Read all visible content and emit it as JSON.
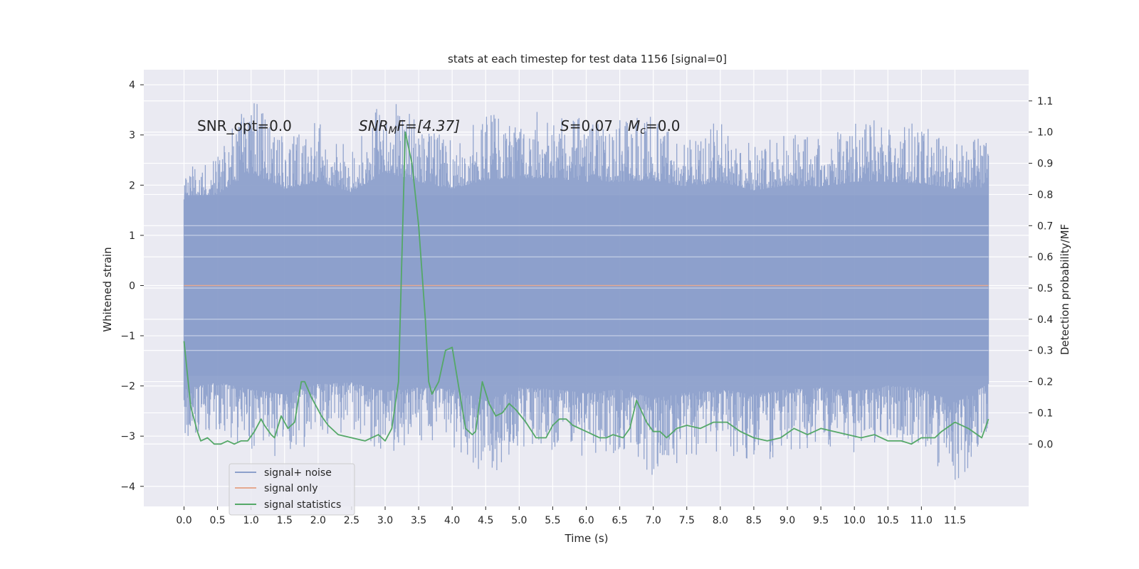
{
  "chart_data": {
    "type": "line",
    "title": "stats at each timestep for test data 1156 [signal=0]",
    "xlabel": "Time (s)",
    "ylabel": "Whitened strain",
    "y2label": "Detection probability/MF",
    "xlim": [
      -0.6,
      12.6
    ],
    "ylim": [
      -4.4,
      4.3
    ],
    "y2lim": [
      -0.2,
      1.2
    ],
    "xticks": [
      0.0,
      0.5,
      1.0,
      1.5,
      2.0,
      2.5,
      3.0,
      3.5,
      4.0,
      4.5,
      5.0,
      5.5,
      6.0,
      6.5,
      7.0,
      7.5,
      8.0,
      8.5,
      9.0,
      9.5,
      10.0,
      10.5,
      11.0,
      11.5
    ],
    "xtick_labels": [
      "0.0",
      "0.5",
      "1.0",
      "1.5",
      "2.0",
      "2.5",
      "3.0",
      "3.5",
      "4.0",
      "4.5",
      "5.0",
      "5.5",
      "6.0",
      "6.5",
      "7.0",
      "7.5",
      "8.0",
      "8.5",
      "9.0",
      "9.5",
      "10.0",
      "10.5",
      "11.0",
      "11.5"
    ],
    "yticks": [
      -4,
      -3,
      -2,
      -1,
      0,
      1,
      2,
      3,
      4
    ],
    "ytick_labels": [
      "−4",
      "−3",
      "−2",
      "−1",
      "0",
      "1",
      "2",
      "3",
      "4"
    ],
    "y2ticks": [
      0.0,
      0.1,
      0.2,
      0.3,
      0.4,
      0.5,
      0.6,
      0.7,
      0.8,
      0.9,
      1.0,
      1.1
    ],
    "y2tick_labels": [
      "0.0",
      "0.1",
      "0.2",
      "0.3",
      "0.4",
      "0.5",
      "0.6",
      "0.7",
      "0.8",
      "0.9",
      "1.0",
      "1.1"
    ],
    "grid": true,
    "legend_position": "lower-left",
    "annotations": {
      "snr_opt": "SNR_opt=0.0",
      "snr_mf_main": "SNR",
      "snr_mf_sub": "M",
      "snr_mf_rest": "F=[4.37]",
      "s_main": "S",
      "s_rest": "=0.07",
      "mc_main": "M",
      "mc_sub": "c",
      "mc_rest": "=0.0"
    },
    "series": [
      {
        "name": "signal+ noise",
        "color": "#8da0cb",
        "axis": "left",
        "x_range": [
          0.0,
          12.0
        ],
        "envelope": {
          "x": [
            0.0,
            0.5,
            1.0,
            1.5,
            2.0,
            2.5,
            3.0,
            3.5,
            4.0,
            4.5,
            5.0,
            5.5,
            6.0,
            6.5,
            7.0,
            7.5,
            8.0,
            8.5,
            9.0,
            9.5,
            10.0,
            10.5,
            11.0,
            11.5,
            12.0
          ],
          "upper": [
            2.3,
            2.6,
            3.85,
            2.9,
            3.3,
            2.7,
            3.85,
            3.3,
            2.9,
            3.4,
            3.5,
            3.5,
            3.3,
            3.3,
            3.4,
            3.0,
            3.3,
            2.8,
            3.1,
            3.0,
            3.3,
            3.3,
            3.2,
            2.9,
            3.0
          ],
          "lower": [
            -3.3,
            -2.9,
            -3.3,
            -3.6,
            -3.0,
            -2.9,
            -3.4,
            -3.2,
            -3.3,
            -3.95,
            -3.2,
            -3.3,
            -3.5,
            -3.3,
            -3.8,
            -3.5,
            -3.3,
            -3.6,
            -3.3,
            -3.2,
            -3.4,
            -3.1,
            -3.2,
            -4.05,
            -3.0
          ]
        }
      },
      {
        "name": "signal only",
        "color": "#e5a990",
        "axis": "left",
        "x": [
          0.0,
          12.0
        ],
        "y": [
          0.0,
          0.0
        ]
      },
      {
        "name": "signal statistics",
        "color": "#55a868",
        "axis": "right",
        "x": [
          0.0,
          0.1,
          0.2,
          0.25,
          0.35,
          0.45,
          0.55,
          0.65,
          0.75,
          0.85,
          0.95,
          1.05,
          1.15,
          1.2,
          1.3,
          1.35,
          1.45,
          1.55,
          1.65,
          1.75,
          1.8,
          1.9,
          1.95,
          2.05,
          2.15,
          2.3,
          2.5,
          2.7,
          2.9,
          3.0,
          3.1,
          3.2,
          3.3,
          3.4,
          3.5,
          3.6,
          3.65,
          3.7,
          3.8,
          3.9,
          4.0,
          4.1,
          4.2,
          4.3,
          4.35,
          4.45,
          4.55,
          4.65,
          4.75,
          4.85,
          4.95,
          5.1,
          5.25,
          5.4,
          5.5,
          5.6,
          5.7,
          5.8,
          6.0,
          6.2,
          6.3,
          6.4,
          6.55,
          6.65,
          6.75,
          6.9,
          7.0,
          7.1,
          7.2,
          7.35,
          7.5,
          7.7,
          7.9,
          8.1,
          8.3,
          8.5,
          8.7,
          8.9,
          9.1,
          9.3,
          9.5,
          9.7,
          9.9,
          10.1,
          10.3,
          10.5,
          10.7,
          10.85,
          11.0,
          11.1,
          11.2,
          11.3,
          11.5,
          11.7,
          11.9,
          12.0
        ],
        "y": [
          0.33,
          0.12,
          0.04,
          0.01,
          0.02,
          0.0,
          0.0,
          0.01,
          0.0,
          0.01,
          0.01,
          0.04,
          0.08,
          0.06,
          0.03,
          0.02,
          0.09,
          0.05,
          0.07,
          0.2,
          0.2,
          0.15,
          0.13,
          0.09,
          0.06,
          0.03,
          0.02,
          0.01,
          0.03,
          0.01,
          0.05,
          0.2,
          1.0,
          0.9,
          0.7,
          0.4,
          0.2,
          0.16,
          0.2,
          0.3,
          0.31,
          0.18,
          0.05,
          0.03,
          0.04,
          0.2,
          0.13,
          0.09,
          0.1,
          0.13,
          0.11,
          0.07,
          0.02,
          0.02,
          0.06,
          0.08,
          0.08,
          0.06,
          0.04,
          0.02,
          0.02,
          0.03,
          0.02,
          0.05,
          0.14,
          0.07,
          0.04,
          0.04,
          0.02,
          0.05,
          0.06,
          0.05,
          0.07,
          0.07,
          0.04,
          0.02,
          0.01,
          0.02,
          0.05,
          0.03,
          0.05,
          0.04,
          0.03,
          0.02,
          0.03,
          0.01,
          0.01,
          0.0,
          0.02,
          0.02,
          0.02,
          0.04,
          0.07,
          0.05,
          0.02,
          0.08
        ]
      }
    ]
  }
}
